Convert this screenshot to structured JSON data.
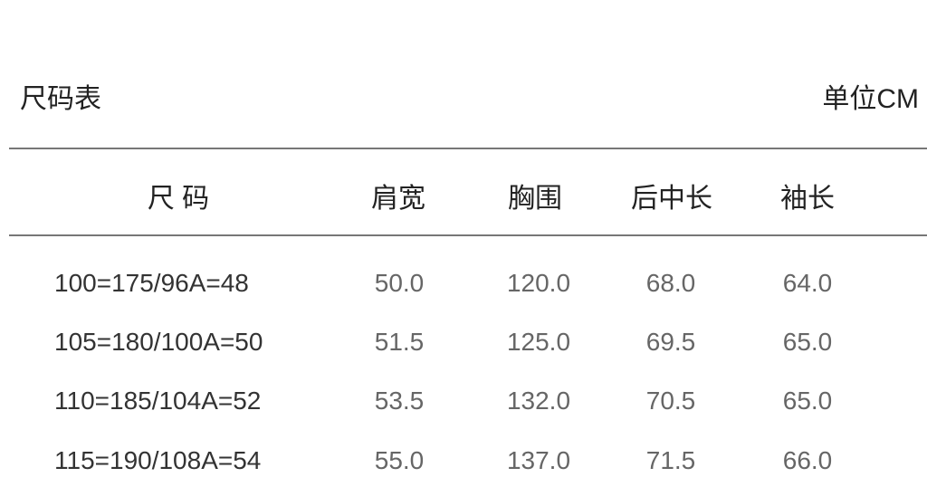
{
  "title": "尺码表",
  "unit": "单位CM",
  "headers": [
    "尺 码",
    "肩宽",
    "胸围",
    "后中长",
    "袖长"
  ],
  "rows": [
    [
      "100=175/96A=48",
      "50.0",
      "120.0",
      "68.0",
      "64.0"
    ],
    [
      "105=180/100A=50",
      "51.5",
      "125.0",
      "69.5",
      "65.0"
    ],
    [
      "110=185/104A=52",
      "53.5",
      "132.0",
      "70.5",
      "65.0"
    ],
    [
      "115=190/108A=54",
      "55.0",
      "137.0",
      "71.5",
      "66.0"
    ]
  ]
}
